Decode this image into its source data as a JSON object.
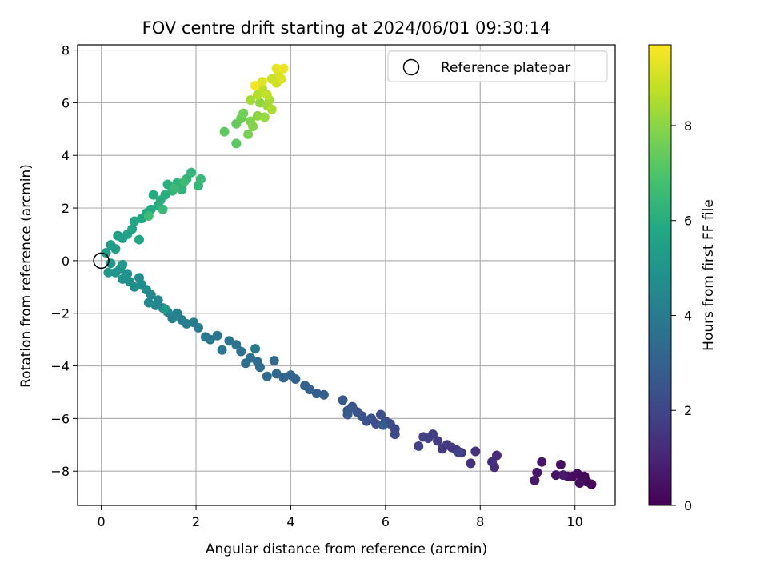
{
  "chart_data": {
    "type": "scatter",
    "title": "FOV centre drift starting at 2024/06/01 09:30:14",
    "xlabel": "Angular distance from reference (arcmin)",
    "ylabel": "Rotation from reference (arcmin)",
    "xlim": [
      -0.5,
      10.85
    ],
    "ylim": [
      -9.3,
      8.2
    ],
    "xticks": [
      0,
      2,
      4,
      6,
      8,
      10
    ],
    "yticks": [
      -8,
      -6,
      -4,
      -2,
      0,
      2,
      4,
      6,
      8
    ],
    "grid": true,
    "legend": {
      "placement": "top-right",
      "entries": [
        "Reference platepar"
      ]
    },
    "reference_point": {
      "x": 0,
      "y": 0,
      "marker": "open-circle"
    },
    "colorbar": {
      "label": "Hours from first FF file",
      "range": [
        0,
        9.7
      ],
      "ticks": [
        0,
        2,
        4,
        6,
        8
      ],
      "colormap": "viridis"
    },
    "series": [
      {
        "points": [
          [
            10.35,
            -8.5,
            0.05
          ],
          [
            10.25,
            -8.4,
            0.1
          ],
          [
            10.2,
            -8.2,
            0.15
          ],
          [
            10.15,
            -8.35,
            0.2
          ],
          [
            10.05,
            -8.1,
            0.25
          ],
          [
            9.95,
            -8.2,
            0.3
          ],
          [
            10.1,
            -8.45,
            0.35
          ],
          [
            9.85,
            -8.2,
            0.4
          ],
          [
            9.7,
            -7.75,
            0.45
          ],
          [
            9.6,
            -8.15,
            0.5
          ],
          [
            9.3,
            -7.65,
            0.55
          ],
          [
            9.2,
            -8.05,
            0.6
          ],
          [
            9.15,
            -8.35,
            0.65
          ],
          [
            9.75,
            -8.15,
            0.7
          ],
          [
            8.35,
            -7.4,
            1.2
          ],
          [
            8.3,
            -7.85,
            1.25
          ],
          [
            8.25,
            -7.65,
            1.3
          ],
          [
            7.9,
            -7.25,
            1.35
          ],
          [
            7.8,
            -7.7,
            1.4
          ],
          [
            7.6,
            -7.3,
            1.45
          ],
          [
            7.5,
            -7.2,
            1.5
          ],
          [
            7.4,
            -7.1,
            1.55
          ],
          [
            7.3,
            -7.0,
            1.6
          ],
          [
            7.2,
            -7.15,
            1.65
          ],
          [
            7.1,
            -6.85,
            1.7
          ],
          [
            7.0,
            -6.6,
            1.75
          ],
          [
            6.9,
            -6.75,
            1.8
          ],
          [
            6.8,
            -6.7,
            1.85
          ],
          [
            6.7,
            -7.05,
            1.9
          ],
          [
            7.55,
            -7.3,
            1.95
          ],
          [
            6.2,
            -6.6,
            2.1
          ],
          [
            6.2,
            -6.4,
            2.15
          ],
          [
            6.1,
            -6.2,
            2.2
          ],
          [
            6.0,
            -6.1,
            2.25
          ],
          [
            5.9,
            -5.85,
            2.3
          ],
          [
            5.8,
            -6.2,
            2.35
          ],
          [
            5.7,
            -6.0,
            2.4
          ],
          [
            5.6,
            -6.1,
            2.45
          ],
          [
            5.5,
            -5.9,
            2.5
          ],
          [
            5.4,
            -5.75,
            2.55
          ],
          [
            5.3,
            -5.55,
            2.6
          ],
          [
            5.2,
            -5.7,
            2.65
          ],
          [
            5.1,
            -5.3,
            2.7
          ],
          [
            5.2,
            -5.85,
            2.75
          ],
          [
            5.95,
            -6.25,
            2.8
          ],
          [
            4.7,
            -5.1,
            2.9
          ],
          [
            4.55,
            -5.05,
            2.95
          ],
          [
            4.4,
            -4.9,
            3.0
          ],
          [
            4.3,
            -4.75,
            3.05
          ],
          [
            4.1,
            -4.5,
            3.1
          ],
          [
            4.0,
            -4.35,
            3.15
          ],
          [
            3.85,
            -4.45,
            3.2
          ],
          [
            3.7,
            -4.3,
            3.25
          ],
          [
            3.65,
            -3.8,
            3.3
          ],
          [
            3.5,
            -4.4,
            3.35
          ],
          [
            3.35,
            -4.05,
            3.4
          ],
          [
            3.3,
            -3.85,
            3.45
          ],
          [
            3.15,
            -3.7,
            3.5
          ],
          [
            3.05,
            -3.9,
            3.55
          ],
          [
            2.95,
            -3.45,
            3.6
          ],
          [
            2.85,
            -3.2,
            3.65
          ],
          [
            2.7,
            -3.05,
            3.7
          ],
          [
            2.55,
            -3.4,
            3.75
          ],
          [
            2.45,
            -2.85,
            3.8
          ],
          [
            2.3,
            -3.0,
            3.85
          ],
          [
            2.2,
            -2.9,
            3.9
          ],
          [
            3.25,
            -3.35,
            3.95
          ],
          [
            2.05,
            -2.55,
            4.0
          ],
          [
            1.95,
            -2.35,
            4.05
          ],
          [
            1.8,
            -2.4,
            4.1
          ],
          [
            1.7,
            -2.25,
            4.15
          ],
          [
            1.6,
            -2.0,
            4.2
          ],
          [
            1.5,
            -2.2,
            4.25
          ],
          [
            1.4,
            -1.95,
            4.3
          ],
          [
            1.3,
            -1.8,
            4.35
          ],
          [
            1.2,
            -1.5,
            4.4
          ],
          [
            1.15,
            -1.7,
            4.45
          ],
          [
            1.05,
            -1.3,
            4.5
          ],
          [
            1.0,
            -1.6,
            4.55
          ],
          [
            0.95,
            -1.1,
            4.6
          ],
          [
            0.85,
            -0.9,
            4.65
          ],
          [
            0.8,
            -0.65,
            4.7
          ],
          [
            0.7,
            -1.0,
            4.75
          ],
          [
            0.6,
            -0.8,
            4.8
          ],
          [
            0.55,
            -0.5,
            4.85
          ],
          [
            0.45,
            -0.7,
            4.9
          ],
          [
            0.4,
            -0.3,
            4.95
          ],
          [
            0.3,
            -0.45,
            5.0
          ],
          [
            0.2,
            -0.1,
            5.05
          ],
          [
            0.15,
            -0.45,
            5.1
          ],
          [
            0.45,
            -0.15,
            5.15
          ],
          [
            1.35,
            -1.85,
            5.2
          ],
          [
            0.1,
            0.3,
            5.3
          ],
          [
            0.2,
            0.6,
            5.35
          ],
          [
            0.3,
            0.45,
            5.4
          ],
          [
            0.35,
            0.95,
            5.45
          ],
          [
            0.45,
            0.85,
            5.5
          ],
          [
            0.55,
            1.0,
            5.55
          ],
          [
            0.65,
            1.2,
            5.6
          ],
          [
            0.7,
            1.5,
            5.65
          ],
          [
            0.8,
            0.8,
            5.7
          ],
          [
            0.85,
            1.6,
            5.75
          ],
          [
            0.95,
            1.8,
            5.8
          ],
          [
            1.05,
            1.95,
            5.85
          ],
          [
            1.1,
            2.5,
            5.9
          ],
          [
            1.2,
            2.1,
            5.95
          ],
          [
            1.25,
            2.3,
            6.0
          ],
          [
            1.35,
            2.5,
            6.05
          ],
          [
            1.4,
            2.9,
            6.1
          ],
          [
            1.5,
            2.65,
            6.15
          ],
          [
            1.6,
            2.95,
            6.2
          ],
          [
            1.7,
            2.7,
            6.25
          ],
          [
            1.8,
            3.1,
            6.3
          ],
          [
            1.9,
            3.35,
            6.35
          ],
          [
            2.05,
            2.85,
            6.4
          ],
          [
            2.1,
            3.1,
            6.45
          ],
          [
            1.3,
            1.95,
            6.5
          ],
          [
            1.55,
            2.75,
            6.55
          ],
          [
            1.75,
            3.0,
            6.6
          ],
          [
            1.0,
            1.7,
            6.65
          ],
          [
            2.85,
            4.45,
            7.2
          ],
          [
            2.6,
            4.9,
            7.3
          ],
          [
            2.85,
            5.2,
            7.4
          ],
          [
            2.95,
            5.4,
            7.5
          ],
          [
            3.0,
            5.6,
            7.6
          ],
          [
            3.1,
            4.8,
            7.7
          ],
          [
            3.15,
            5.3,
            7.8
          ],
          [
            3.2,
            5.1,
            7.9
          ],
          [
            3.3,
            5.5,
            8.0
          ],
          [
            3.35,
            6.0,
            8.1
          ],
          [
            3.45,
            5.45,
            8.2
          ],
          [
            3.5,
            5.9,
            8.3
          ],
          [
            3.55,
            6.1,
            8.4
          ],
          [
            3.6,
            5.75,
            8.5
          ],
          [
            3.3,
            6.3,
            8.6
          ],
          [
            3.4,
            6.55,
            8.7
          ],
          [
            3.5,
            6.3,
            8.8
          ],
          [
            3.6,
            6.9,
            8.9
          ],
          [
            3.7,
            6.75,
            9.0
          ],
          [
            3.75,
            7.1,
            9.1
          ],
          [
            3.8,
            6.9,
            9.2
          ],
          [
            3.7,
            7.3,
            9.3
          ],
          [
            3.85,
            7.3,
            9.4
          ],
          [
            3.25,
            6.65,
            9.5
          ],
          [
            3.15,
            6.1,
            8.35
          ],
          [
            3.4,
            6.8,
            9.25
          ]
        ]
      }
    ]
  }
}
